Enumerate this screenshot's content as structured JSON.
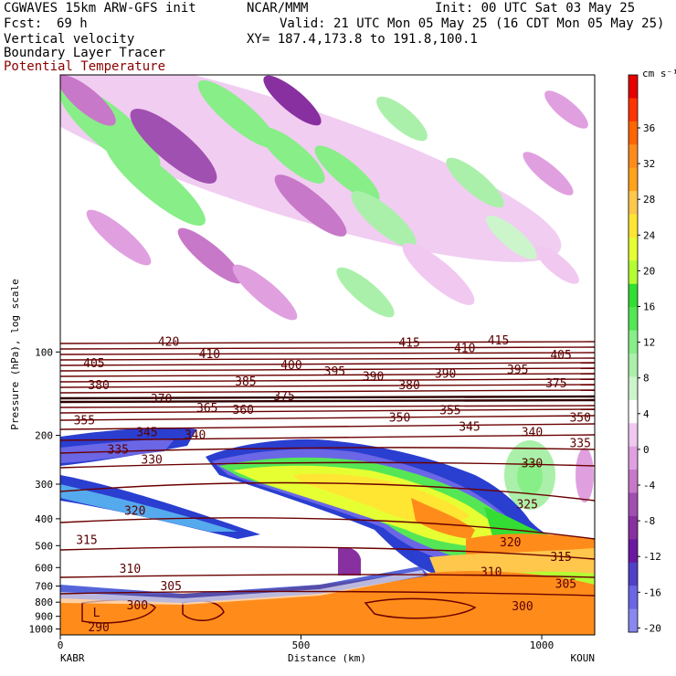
{
  "header": {
    "line1_left": "CGWAVES 15km ARW-GFS init",
    "line1_mid": "NCAR/MMM",
    "line1_right": "Init: 00 UTC Sat 03 May 25",
    "fcst_label": "Fcst:",
    "fcst_value": "69 h",
    "valid": "Valid: 21 UTC Mon 05 May 25 (16 CDT Mon 05 May 25)",
    "field1": "Vertical velocity",
    "xy": "XY= 187.4,173.8 to 191.8,100.1",
    "field2": "Boundary Layer Tracer",
    "field3": "Potential Temperature"
  },
  "colors": {
    "theta_contour": "#6b0000",
    "field3_text": "#8b0000"
  },
  "chart_data": {
    "type": "heatmap",
    "title": "",
    "xlabel": "Distance (km)",
    "ylabel": "Pressure (hPa), log scale",
    "xlim": [
      0,
      1110
    ],
    "ylim": [
      1050,
      10
    ],
    "x_ticks": [
      0,
      500,
      1000
    ],
    "y_ticks": [
      100,
      200,
      300,
      400,
      500,
      600,
      700,
      800,
      900,
      1000
    ],
    "start_label": "KABR",
    "end_label": "KOUN",
    "colorbar": {
      "unit": "cm s⁻¹",
      "labels": [
        36,
        32,
        28,
        24,
        20,
        16,
        12,
        8,
        4,
        0,
        -4,
        -8,
        -12,
        -16,
        -20
      ],
      "colors": [
        "#e60000",
        "#ff3300",
        "#ff6600",
        "#ff8c1a",
        "#ffa31a",
        "#ffc84d",
        "#ffe633",
        "#e6ff33",
        "#b3ff33",
        "#33dd33",
        "#55e655",
        "#88ee88",
        "#aaf0aa",
        "#ccf5cc",
        "#ffffff",
        "#f0c8f0",
        "#e0a0e0",
        "#c878c8",
        "#a050b0",
        "#8830a0",
        "#6a18a0",
        "#5040c8",
        "#6a66e6",
        "#8888f0"
      ]
    },
    "contour_labels": [
      {
        "text": "420",
        "x": 225,
        "p": 92
      },
      {
        "text": "405",
        "x": 70,
        "p": 110
      },
      {
        "text": "410",
        "x": 310,
        "p": 102
      },
      {
        "text": "400",
        "x": 480,
        "p": 112
      },
      {
        "text": "395",
        "x": 570,
        "p": 118
      },
      {
        "text": "415",
        "x": 725,
        "p": 93
      },
      {
        "text": "410",
        "x": 840,
        "p": 97
      },
      {
        "text": "415",
        "x": 910,
        "p": 91
      },
      {
        "text": "405",
        "x": 1040,
        "p": 103
      },
      {
        "text": "380",
        "x": 80,
        "p": 132
      },
      {
        "text": "385",
        "x": 385,
        "p": 128
      },
      {
        "text": "390",
        "x": 650,
        "p": 123
      },
      {
        "text": "380",
        "x": 725,
        "p": 132
      },
      {
        "text": "390",
        "x": 800,
        "p": 120
      },
      {
        "text": "395",
        "x": 950,
        "p": 116
      },
      {
        "text": "375",
        "x": 1030,
        "p": 130
      },
      {
        "text": "370",
        "x": 210,
        "p": 148
      },
      {
        "text": "365",
        "x": 305,
        "p": 160
      },
      {
        "text": "360",
        "x": 380,
        "p": 162
      },
      {
        "text": "375",
        "x": 465,
        "p": 145
      },
      {
        "text": "355",
        "x": 50,
        "p": 177
      },
      {
        "text": "350",
        "x": 705,
        "p": 173
      },
      {
        "text": "355",
        "x": 810,
        "p": 163
      },
      {
        "text": "345",
        "x": 180,
        "p": 195
      },
      {
        "text": "340",
        "x": 280,
        "p": 200
      },
      {
        "text": "345",
        "x": 850,
        "p": 187
      },
      {
        "text": "340",
        "x": 980,
        "p": 195
      },
      {
        "text": "350",
        "x": 1080,
        "p": 173
      },
      {
        "text": "335",
        "x": 120,
        "p": 226
      },
      {
        "text": "330",
        "x": 190,
        "p": 245
      },
      {
        "text": "335",
        "x": 1080,
        "p": 214
      },
      {
        "text": "330",
        "x": 980,
        "p": 253
      },
      {
        "text": "325",
        "x": 970,
        "p": 356
      },
      {
        "text": "320",
        "x": 155,
        "p": 375
      },
      {
        "text": "320",
        "x": 935,
        "p": 488
      },
      {
        "text": "315",
        "x": 55,
        "p": 478
      },
      {
        "text": "315",
        "x": 1040,
        "p": 550
      },
      {
        "text": "310",
        "x": 145,
        "p": 608
      },
      {
        "text": "310",
        "x": 895,
        "p": 625
      },
      {
        "text": "305",
        "x": 230,
        "p": 703
      },
      {
        "text": "305",
        "x": 1050,
        "p": 690
      },
      {
        "text": "300",
        "x": 160,
        "p": 825
      },
      {
        "text": "300",
        "x": 960,
        "p": 830
      },
      {
        "text": "290",
        "x": 80,
        "p": 990
      }
    ],
    "symbol_L": {
      "text": "L",
      "x": 75,
      "p": 870
    }
  }
}
